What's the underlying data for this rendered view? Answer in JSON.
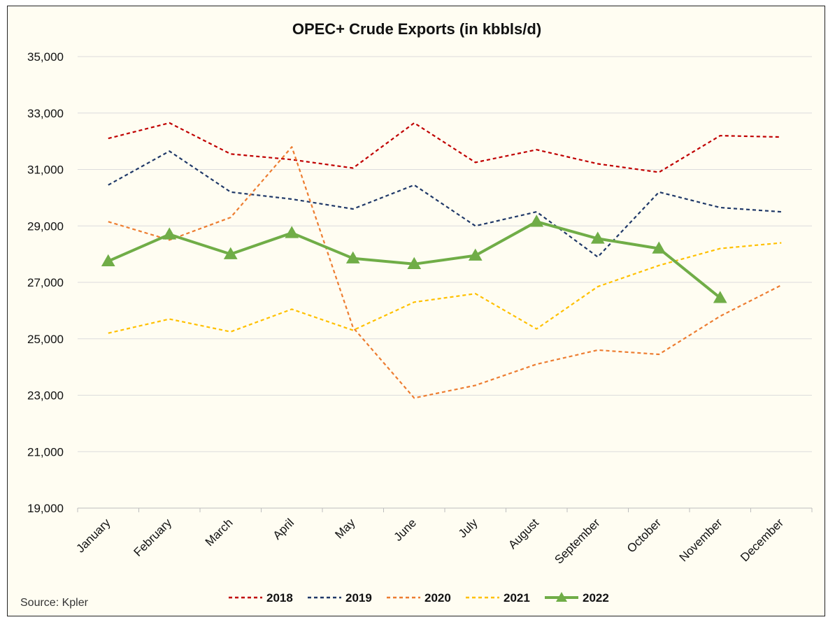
{
  "chart_data": {
    "type": "line",
    "title": "OPEC+ Crude Exports (in kbbls/d)",
    "source": "Source: Kpler",
    "xlabel": "",
    "ylabel": "",
    "ylim": [
      19000,
      35000
    ],
    "yticks": [
      19000,
      21000,
      23000,
      25000,
      27000,
      29000,
      31000,
      33000,
      35000
    ],
    "ytick_labels": [
      "19,000",
      "21,000",
      "23,000",
      "25,000",
      "27,000",
      "29,000",
      "31,000",
      "33,000",
      "35,000"
    ],
    "grid": true,
    "legend_position": "bottom",
    "categories": [
      "January",
      "February",
      "March",
      "April",
      "May",
      "June",
      "July",
      "August",
      "September",
      "October",
      "November",
      "December"
    ],
    "series": [
      {
        "name": "2018",
        "color": "#c00000",
        "style": "dashed",
        "values": [
          32100,
          32650,
          31550,
          31350,
          31050,
          32650,
          31250,
          31700,
          31200,
          30900,
          32200,
          32150
        ]
      },
      {
        "name": "2019",
        "color": "#1f3868",
        "style": "dashed",
        "values": [
          30450,
          31650,
          30200,
          29950,
          29600,
          30450,
          29000,
          29500,
          27900,
          30200,
          29650,
          29500
        ]
      },
      {
        "name": "2020",
        "color": "#ed7d31",
        "style": "dashed",
        "values": [
          29150,
          28500,
          29300,
          31800,
          25400,
          22900,
          23350,
          24100,
          24600,
          24450,
          25800,
          26900
        ]
      },
      {
        "name": "2021",
        "color": "#ffc000",
        "style": "dashed",
        "values": [
          25200,
          25700,
          25250,
          26050,
          25300,
          26300,
          26600,
          25350,
          26850,
          27600,
          28200,
          28400
        ]
      },
      {
        "name": "2022",
        "color": "#70ad47",
        "style": "solid-triangle",
        "values": [
          27750,
          28700,
          28000,
          28750,
          27850,
          27650,
          27950,
          29150,
          28550,
          28200,
          26450,
          null
        ]
      }
    ]
  }
}
